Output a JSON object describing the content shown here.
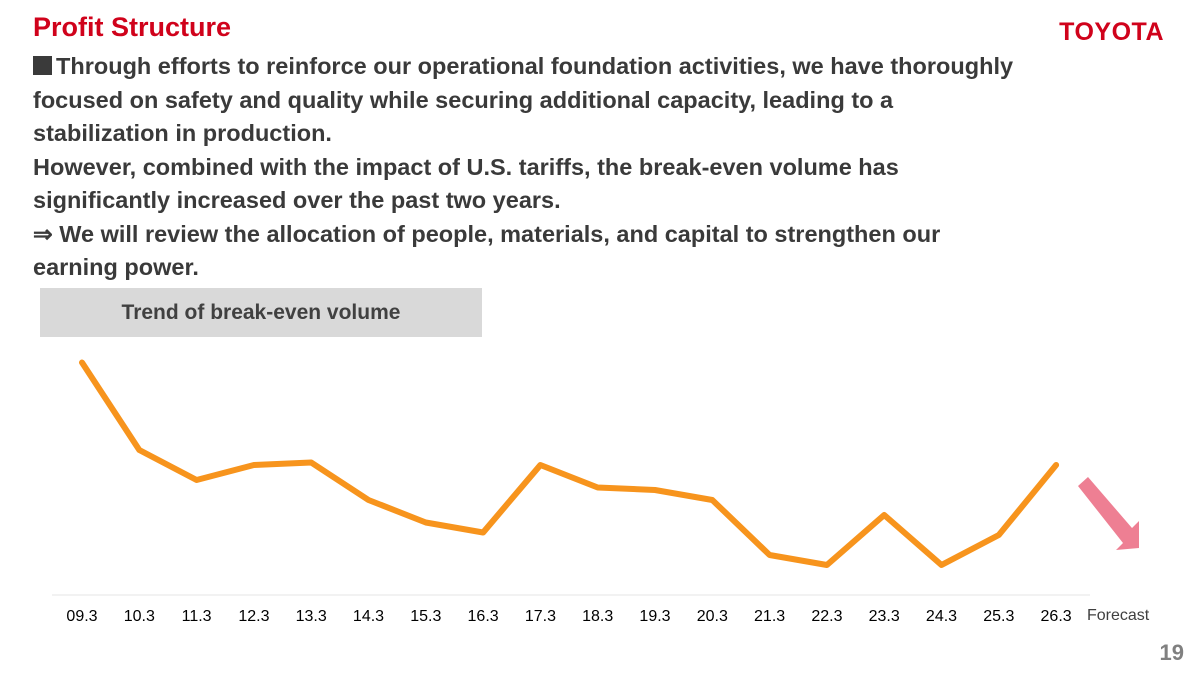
{
  "header": {
    "title": "Profit Structure",
    "logo": "TOYOTA"
  },
  "body": {
    "lines": [
      "Through efforts to reinforce our operational foundation activities, we have thoroughly",
      "focused on safety and quality while securing additional capacity, leading to a",
      "stabilization in production.",
      "However, combined with the impact of U.S. tariffs, the break-even volume has",
      "significantly increased over the past two years.",
      "⇒ We will review the allocation of people, materials, and capital to strengthen our",
      "earning power."
    ]
  },
  "chart_data": {
    "type": "line",
    "title": "Trend of break-even volume",
    "categories": [
      "09.3",
      "10.3",
      "11.3",
      "12.3",
      "13.3",
      "14.3",
      "15.3",
      "16.3",
      "17.3",
      "18.3",
      "19.3",
      "20.3",
      "21.3",
      "22.3",
      "23.3",
      "24.3",
      "25.3",
      "26.3"
    ],
    "values": [
      93,
      58,
      46,
      52,
      53,
      38,
      29,
      25,
      52,
      43,
      42,
      38,
      16,
      12,
      32,
      12,
      24,
      52
    ],
    "ylim": [
      0,
      100
    ],
    "y_axis_shown": false,
    "grid": false,
    "line_color": "#f7941d",
    "annotation": {
      "label": "Forecast",
      "arrow": "down-right",
      "arrow_color": "#ee7f93"
    }
  },
  "footer": {
    "page_number": "19"
  }
}
